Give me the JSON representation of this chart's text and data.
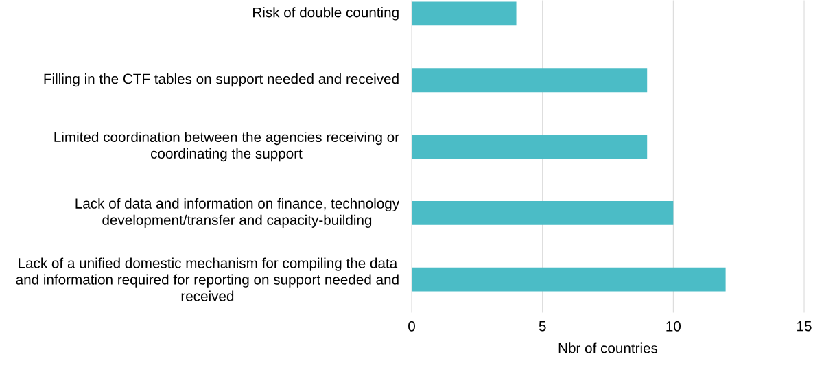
{
  "chart_data": {
    "type": "bar",
    "orientation": "horizontal",
    "categories": [
      "Risk of double counting",
      "Filling in the CTF tables on support needed and received",
      "Limited coordination between the agencies receiving or coordinating the support",
      "Lack of data and information on finance, technology development/transfer and capacity-building",
      "Lack of a unified domestic mechanism for compiling the data and information required for reporting on support needed and received"
    ],
    "values": [
      4,
      9,
      9,
      10,
      12
    ],
    "color": "#4bbcc6",
    "xlim": [
      0,
      15
    ],
    "xticks": [
      0,
      5,
      10,
      15
    ],
    "xlabel": "Nbr of countries",
    "grid": "x"
  }
}
